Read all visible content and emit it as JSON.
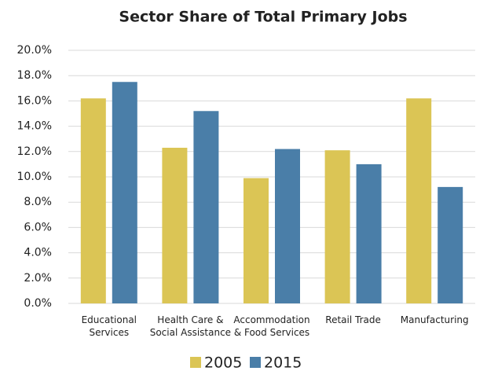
{
  "chart_data": {
    "type": "bar",
    "title": "Sector Share of Total Primary Jobs",
    "categories": [
      [
        "Educational",
        "Services"
      ],
      [
        "Health Care &",
        "Social Assistance"
      ],
      [
        "Accommodation",
        "& Food Services"
      ],
      [
        "Retail Trade"
      ],
      [
        "Manufacturing"
      ]
    ],
    "series": [
      {
        "name": "2005",
        "color": "#dbc555",
        "values": [
          16.2,
          12.3,
          9.9,
          12.1,
          16.2
        ]
      },
      {
        "name": "2015",
        "color": "#4a7ea8",
        "values": [
          17.5,
          15.2,
          12.2,
          11.0,
          9.2
        ]
      }
    ],
    "ylim": [
      0,
      20
    ],
    "yticks": [
      {
        "value": 0,
        "label": "0.0%"
      },
      {
        "value": 2,
        "label": "2.0%"
      },
      {
        "value": 4,
        "label": "4.0%"
      },
      {
        "value": 6,
        "label": "6.0%"
      },
      {
        "value": 8,
        "label": "8.0%"
      },
      {
        "value": 10,
        "label": "10.0%"
      },
      {
        "value": 12,
        "label": "12.0%"
      },
      {
        "value": 14,
        "label": "14.0%"
      },
      {
        "value": 16,
        "label": "16.0%"
      },
      {
        "value": 18,
        "label": "18.0%"
      },
      {
        "value": 20,
        "label": "20.0%"
      }
    ],
    "grid": true,
    "legend": "bottom"
  }
}
